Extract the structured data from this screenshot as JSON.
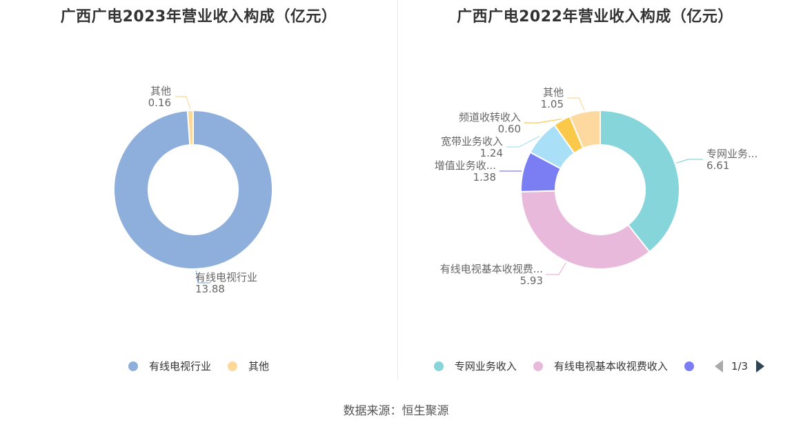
{
  "footer": {
    "source": "数据来源：恒生聚源"
  },
  "chart_data": [
    {
      "type": "pie",
      "title": "广西广电2023年营业收入构成（亿元）",
      "donut": true,
      "slices": [
        {
          "name": "有线电视行业",
          "value": 13.88,
          "label": "有线电视行业",
          "value_label": "13.88",
          "color": "#8eaedb"
        },
        {
          "name": "其他",
          "value": 0.16,
          "label": "其他",
          "value_label": "0.16",
          "color": "#fcd89a"
        }
      ],
      "legend": {
        "placement": "bottom",
        "items": [
          {
            "label": "有线电视行业",
            "color": "#8eaedb"
          },
          {
            "label": "其他",
            "color": "#fcd89a"
          }
        ]
      }
    },
    {
      "type": "pie",
      "title": "广西广电2022年营业收入构成（亿元）",
      "donut": true,
      "slices": [
        {
          "name": "专网业务收入",
          "value": 6.61,
          "label": "专网业务...",
          "value_label": "6.61",
          "color": "#86d5db"
        },
        {
          "name": "有线电视基本收视费收入",
          "value": 5.93,
          "label": "有线电视基本收视费...",
          "value_label": "5.93",
          "color": "#e8b9da"
        },
        {
          "name": "增值业务收入",
          "value": 1.38,
          "label": "增值业务收...",
          "value_label": "1.38",
          "color": "#7a7ef2"
        },
        {
          "name": "宽带业务收入",
          "value": 1.24,
          "label": "宽带业务收入",
          "value_label": "1.24",
          "color": "#a9e0f7"
        },
        {
          "name": "频道收转收入",
          "value": 0.6,
          "label": "频道收转收入",
          "value_label": "0.60",
          "color": "#fbc94a"
        },
        {
          "name": "其他",
          "value": 1.05,
          "label": "其他",
          "value_label": "1.05",
          "color": "#fdd9a0"
        }
      ],
      "legend": {
        "placement": "bottom",
        "items": [
          {
            "label": "专网业务收入",
            "color": "#86d5db"
          },
          {
            "label": "有线电视基本收视费收入",
            "color": "#e8b9da"
          },
          {
            "label": "",
            "color": "#7a7ef2"
          }
        ],
        "pager": "1/3"
      }
    }
  ]
}
